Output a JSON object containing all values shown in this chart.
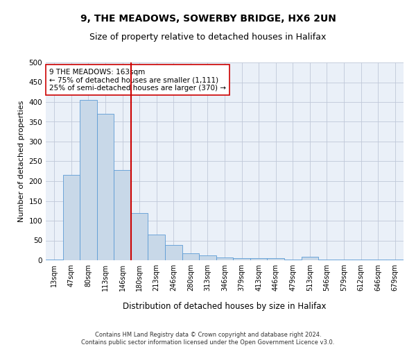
{
  "title1": "9, THE MEADOWS, SOWERBY BRIDGE, HX6 2UN",
  "title2": "Size of property relative to detached houses in Halifax",
  "xlabel": "Distribution of detached houses by size in Halifax",
  "ylabel": "Number of detached properties",
  "categories": [
    "13sqm",
    "47sqm",
    "80sqm",
    "113sqm",
    "146sqm",
    "180sqm",
    "213sqm",
    "246sqm",
    "280sqm",
    "313sqm",
    "346sqm",
    "379sqm",
    "413sqm",
    "446sqm",
    "479sqm",
    "513sqm",
    "546sqm",
    "579sqm",
    "612sqm",
    "646sqm",
    "679sqm"
  ],
  "values": [
    2,
    215,
    405,
    370,
    228,
    120,
    65,
    38,
    17,
    12,
    7,
    5,
    5,
    5,
    1,
    8,
    1,
    1,
    1,
    1,
    1
  ],
  "bar_color": "#c8d8e8",
  "bar_edge_color": "#5b9bd5",
  "vline_color": "#cc0000",
  "annotation_line1": "9 THE MEADOWS: 163sqm",
  "annotation_line2": "← 75% of detached houses are smaller (1,111)",
  "annotation_line3": "25% of semi-detached houses are larger (370) →",
  "annotation_box_color": "#ffffff",
  "annotation_box_edge": "#cc0000",
  "ylim": [
    0,
    500
  ],
  "yticks": [
    0,
    50,
    100,
    150,
    200,
    250,
    300,
    350,
    400,
    450,
    500
  ],
  "grid_color": "#c0c8d8",
  "background_color": "#eaf0f8",
  "footer_text": "Contains HM Land Registry data © Crown copyright and database right 2024.\nContains public sector information licensed under the Open Government Licence v3.0.",
  "title1_fontsize": 10,
  "title2_fontsize": 9,
  "xlabel_fontsize": 8.5,
  "ylabel_fontsize": 8,
  "tick_fontsize": 7,
  "ytick_fontsize": 7.5,
  "annotation_fontsize": 7.5
}
